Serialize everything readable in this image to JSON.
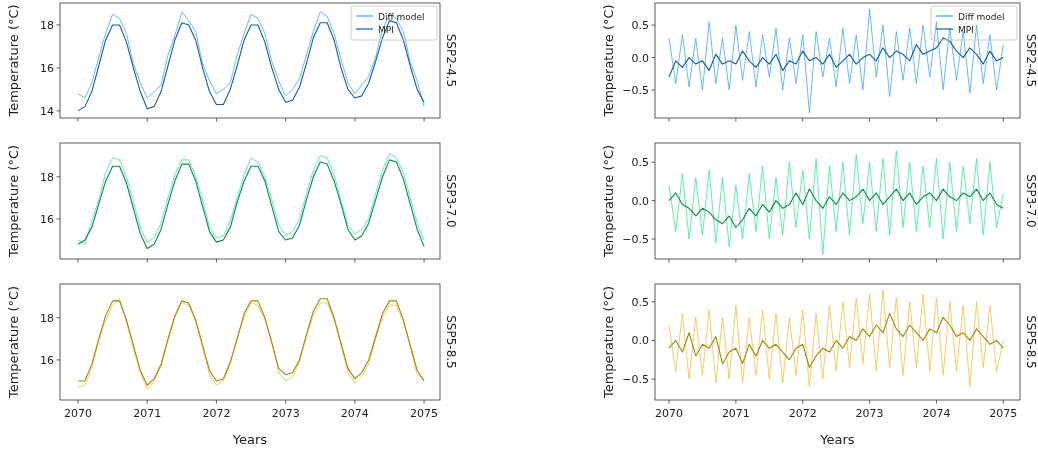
{
  "chart_data": [
    {
      "type": "line",
      "ylabel": "Temperature (°C)",
      "y2label": "SSP2-4.5",
      "xlim": [
        2069.74,
        2075.23
      ],
      "xticks": [
        2070,
        2071,
        2072,
        2073,
        2074,
        2075
      ],
      "ylim": [
        13.67,
        19.02
      ],
      "yticks": [
        14,
        16,
        18
      ],
      "tick_labels": "y",
      "legend": "top right",
      "grid": false,
      "x": [
        2070,
        2070.1,
        2070.2,
        2070.3,
        2070.4,
        2070.5,
        2070.6,
        2070.7,
        2070.8,
        2070.9,
        2071,
        2071.1,
        2071.2,
        2071.3,
        2071.4,
        2071.5,
        2071.6,
        2071.7,
        2071.8,
        2071.9,
        2072,
        2072.1,
        2072.2,
        2072.3,
        2072.4,
        2072.5,
        2072.6,
        2072.7,
        2072.8,
        2072.9,
        2073,
        2073.1,
        2073.2,
        2073.3,
        2073.4,
        2073.5,
        2073.6,
        2073.7,
        2073.8,
        2073.9,
        2074,
        2074.1,
        2074.2,
        2074.3,
        2074.4,
        2074.5,
        2074.6,
        2074.7,
        2074.8,
        2074.9,
        2075
      ],
      "series": [
        {
          "name": "Diff model",
          "color": "#3fa9f5",
          "values": [
            14.8,
            14.6,
            15.3,
            16.5,
            17.6,
            18.5,
            18.3,
            17.6,
            16.2,
            15.3,
            14.6,
            14.9,
            15.2,
            16.6,
            17.5,
            18.6,
            18.2,
            17.7,
            16.2,
            15.4,
            14.8,
            15.0,
            15.3,
            16.6,
            17.6,
            18.5,
            18.3,
            17.6,
            16.3,
            15.4,
            14.7,
            15.0,
            15.5,
            16.6,
            17.7,
            18.6,
            18.4,
            17.6,
            16.4,
            15.3,
            14.8,
            15.2,
            15.6,
            16.5,
            17.8,
            18.5,
            18.3,
            17.7,
            16.3,
            15.4,
            14.2
          ]
        },
        {
          "name": "MPI",
          "color": "#185f94",
          "values": [
            14.0,
            14.2,
            14.9,
            16.1,
            17.3,
            18.0,
            18.0,
            17.2,
            16.0,
            14.9,
            14.1,
            14.2,
            14.9,
            16.1,
            17.3,
            18.1,
            18.0,
            17.3,
            16.0,
            14.9,
            14.3,
            14.3,
            15.0,
            16.1,
            17.3,
            18.0,
            18.0,
            17.2,
            16.0,
            15.0,
            14.4,
            14.5,
            15.1,
            16.2,
            17.4,
            18.1,
            18.1,
            17.3,
            16.0,
            15.0,
            14.6,
            14.7,
            15.3,
            16.3,
            17.4,
            18.2,
            18.1,
            17.3,
            16.1,
            15.0,
            14.4
          ]
        }
      ]
    },
    {
      "type": "line",
      "ylabel": "Temperature (°C)",
      "y2label": "SSP2-4.5",
      "xlim": [
        2069.79,
        2075.25
      ],
      "xticks": [
        2070,
        2071,
        2072,
        2073,
        2074,
        2075
      ],
      "ylim": [
        -0.93,
        0.84
      ],
      "yticks": [
        {
          "value": -0.5,
          "label": "−0.5"
        },
        {
          "value": 0,
          "label": "0.0"
        },
        {
          "value": 0.5,
          "label": "0.5"
        }
      ],
      "tick_labels": "y",
      "legend": "top right",
      "grid": false,
      "x": [
        2070,
        2070.1,
        2070.2,
        2070.3,
        2070.4,
        2070.5,
        2070.6,
        2070.7,
        2070.8,
        2070.9,
        2071,
        2071.1,
        2071.2,
        2071.3,
        2071.4,
        2071.5,
        2071.6,
        2071.7,
        2071.8,
        2071.9,
        2072,
        2072.1,
        2072.2,
        2072.3,
        2072.4,
        2072.5,
        2072.6,
        2072.7,
        2072.8,
        2072.9,
        2073,
        2073.1,
        2073.2,
        2073.3,
        2073.4,
        2073.5,
        2073.6,
        2073.7,
        2073.8,
        2073.9,
        2074,
        2074.1,
        2074.2,
        2074.3,
        2074.4,
        2074.5,
        2074.6,
        2074.7,
        2074.8,
        2074.9,
        2075
      ],
      "series": [
        {
          "name": "Diff model",
          "color": "#3fa9f5",
          "values": [
            0.3,
            -0.4,
            0.35,
            -0.45,
            0.3,
            -0.5,
            0.55,
            -0.4,
            0.3,
            -0.5,
            0.5,
            -0.35,
            0.4,
            -0.45,
            0.35,
            -0.3,
            0.45,
            -0.5,
            0.3,
            -0.4,
            0.35,
            -0.85,
            0.4,
            -0.3,
            0.3,
            -0.45,
            0.45,
            -0.4,
            0.35,
            -0.5,
            0.75,
            -0.3,
            0.5,
            -0.6,
            0.4,
            -0.35,
            0.45,
            -0.4,
            0.5,
            -0.3,
            0.55,
            -0.5,
            0.45,
            -0.35,
            0.4,
            -0.55,
            0.5,
            -0.4,
            0.35,
            -0.5,
            0.2
          ]
        },
        {
          "name": "MPI",
          "color": "#185f94",
          "values": [
            -0.3,
            -0.05,
            -0.15,
            0.0,
            -0.1,
            -0.05,
            -0.2,
            0.05,
            -0.1,
            -0.05,
            -0.1,
            0.1,
            -0.05,
            -0.15,
            0.0,
            -0.1,
            0.05,
            -0.2,
            -0.05,
            -0.1,
            0.1,
            -0.05,
            0.0,
            -0.1,
            0.05,
            -0.15,
            -0.05,
            0.05,
            -0.1,
            0.0,
            0.05,
            -0.05,
            0.15,
            0.0,
            0.1,
            0.05,
            -0.05,
            0.2,
            0.05,
            0.1,
            0.15,
            0.3,
            0.25,
            0.1,
            0.0,
            0.15,
            0.05,
            -0.1,
            0.1,
            -0.05,
            0.0
          ]
        }
      ]
    },
    {
      "type": "line",
      "ylabel": "Temperature (°C)",
      "y2label": "SSP3-7.0",
      "xlim": [
        2069.74,
        2075.23
      ],
      "xticks": [
        2070,
        2071,
        2072,
        2073,
        2074,
        2075
      ],
      "ylim": [
        14.1,
        19.6
      ],
      "yticks": [
        16,
        18
      ],
      "tick_labels": "y",
      "grid": false,
      "x": [
        2070,
        2070.1,
        2070.2,
        2070.3,
        2070.4,
        2070.5,
        2070.6,
        2070.7,
        2070.8,
        2070.9,
        2071,
        2071.1,
        2071.2,
        2071.3,
        2071.4,
        2071.5,
        2071.6,
        2071.7,
        2071.8,
        2071.9,
        2072,
        2072.1,
        2072.2,
        2072.3,
        2072.4,
        2072.5,
        2072.6,
        2072.7,
        2072.8,
        2072.9,
        2073,
        2073.1,
        2073.2,
        2073.3,
        2073.4,
        2073.5,
        2073.6,
        2073.7,
        2073.8,
        2073.9,
        2074,
        2074.1,
        2074.2,
        2074.3,
        2074.4,
        2074.5,
        2074.6,
        2074.7,
        2074.8,
        2074.9,
        2075
      ],
      "series": [
        {
          "color": "#33ee8f",
          "values": [
            15.0,
            14.8,
            15.9,
            16.9,
            18.2,
            18.9,
            18.8,
            18.0,
            16.8,
            15.6,
            14.9,
            15.1,
            15.8,
            17.0,
            18.1,
            18.8,
            18.8,
            18.0,
            16.9,
            15.6,
            15.1,
            15.2,
            15.9,
            17.0,
            18.1,
            18.9,
            18.7,
            18.0,
            16.9,
            15.7,
            15.2,
            15.4,
            16.0,
            17.2,
            18.3,
            19.0,
            18.9,
            18.1,
            16.9,
            15.7,
            15.3,
            15.5,
            16.0,
            17.2,
            18.3,
            19.1,
            18.9,
            18.2,
            17.0,
            15.8,
            15.0
          ]
        },
        {
          "color": "#0d8a4c",
          "values": [
            14.8,
            15.0,
            15.6,
            16.7,
            17.8,
            18.5,
            18.5,
            17.7,
            16.5,
            15.3,
            14.6,
            14.8,
            15.5,
            16.7,
            17.8,
            18.6,
            18.6,
            17.8,
            16.6,
            15.4,
            14.9,
            15.0,
            15.6,
            16.8,
            17.8,
            18.5,
            18.5,
            17.8,
            16.6,
            15.4,
            15.0,
            15.1,
            15.7,
            16.9,
            18.0,
            18.7,
            18.6,
            17.8,
            16.7,
            15.5,
            15.0,
            15.2,
            15.8,
            16.9,
            18.0,
            18.8,
            18.7,
            17.9,
            16.7,
            15.5,
            14.7
          ]
        }
      ]
    },
    {
      "type": "line",
      "ylabel": "Temperature (°C)",
      "y2label": "SSP3-7.0",
      "xlim": [
        2069.79,
        2075.25
      ],
      "xticks": [
        2070,
        2071,
        2072,
        2073,
        2074,
        2075
      ],
      "ylim": [
        -0.76,
        0.75
      ],
      "yticks": [
        {
          "value": -0.5,
          "label": "−0.5"
        },
        {
          "value": 0,
          "label": "0.0"
        },
        {
          "value": 0.5,
          "label": "0.5"
        }
      ],
      "tick_labels": "y",
      "grid": false,
      "x": [
        2070,
        2070.1,
        2070.2,
        2070.3,
        2070.4,
        2070.5,
        2070.6,
        2070.7,
        2070.8,
        2070.9,
        2071,
        2071.1,
        2071.2,
        2071.3,
        2071.4,
        2071.5,
        2071.6,
        2071.7,
        2071.8,
        2071.9,
        2072,
        2072.1,
        2072.2,
        2072.3,
        2072.4,
        2072.5,
        2072.6,
        2072.7,
        2072.8,
        2072.9,
        2073,
        2073.1,
        2073.2,
        2073.3,
        2073.4,
        2073.5,
        2073.6,
        2073.7,
        2073.8,
        2073.9,
        2074,
        2074.1,
        2074.2,
        2074.3,
        2074.4,
        2074.5,
        2074.6,
        2074.7,
        2074.8,
        2074.9,
        2075
      ],
      "series": [
        {
          "color": "#33ee8f",
          "values": [
            0.2,
            -0.4,
            0.35,
            -0.5,
            0.3,
            -0.45,
            0.4,
            -0.55,
            0.3,
            -0.6,
            0.2,
            -0.5,
            0.35,
            -0.4,
            0.45,
            -0.5,
            0.3,
            -0.45,
            0.5,
            -0.35,
            0.4,
            -0.5,
            0.55,
            -0.7,
            0.45,
            -0.4,
            0.5,
            -0.45,
            0.6,
            -0.3,
            0.5,
            -0.4,
            0.55,
            -0.45,
            0.65,
            -0.35,
            0.5,
            -0.4,
            0.45,
            -0.35,
            0.55,
            -0.5,
            0.5,
            -0.4,
            0.45,
            -0.3,
            0.55,
            -0.45,
            0.5,
            -0.35,
            0.1
          ]
        },
        {
          "color": "#0d8a4c",
          "values": [
            0.0,
            0.1,
            -0.05,
            -0.1,
            -0.2,
            -0.1,
            -0.15,
            -0.25,
            -0.3,
            -0.2,
            -0.35,
            -0.25,
            -0.1,
            -0.2,
            -0.05,
            -0.15,
            0.0,
            -0.1,
            -0.05,
            0.1,
            -0.05,
            0.15,
            0.0,
            -0.1,
            0.05,
            -0.05,
            0.1,
            0.0,
            0.05,
            0.15,
            0.0,
            0.1,
            -0.05,
            0.05,
            0.15,
            0.0,
            0.1,
            -0.05,
            0.05,
            0.1,
            0.0,
            0.15,
            0.05,
            0.0,
            0.1,
            0.05,
            0.15,
            0.0,
            0.1,
            -0.05,
            -0.1
          ]
        }
      ]
    },
    {
      "type": "line",
      "xlabel": "Years",
      "ylabel": "Temperature (°C)",
      "y2label": "SSP5-8.5",
      "xlim": [
        2069.74,
        2075.23
      ],
      "xticks": [
        2070,
        2071,
        2072,
        2073,
        2074,
        2075
      ],
      "ylim": [
        14.1,
        19.6
      ],
      "yticks": [
        16,
        18
      ],
      "grid": false,
      "x": [
        2070,
        2070.1,
        2070.2,
        2070.3,
        2070.4,
        2070.5,
        2070.6,
        2070.7,
        2070.8,
        2070.9,
        2071,
        2071.1,
        2071.2,
        2071.3,
        2071.4,
        2071.5,
        2071.6,
        2071.7,
        2071.8,
        2071.9,
        2072,
        2072.1,
        2072.2,
        2072.3,
        2072.4,
        2072.5,
        2072.6,
        2072.7,
        2072.8,
        2072.9,
        2073,
        2073.1,
        2073.2,
        2073.3,
        2073.4,
        2073.5,
        2073.6,
        2073.7,
        2073.8,
        2073.9,
        2074,
        2074.1,
        2074.2,
        2074.3,
        2074.4,
        2074.5,
        2074.6,
        2074.7,
        2074.8,
        2074.9,
        2075
      ],
      "series": [
        {
          "color": "#f2c040",
          "values": [
            14.7,
            14.8,
            15.6,
            16.9,
            17.9,
            18.6,
            18.9,
            17.8,
            16.5,
            15.4,
            14.6,
            15.0,
            15.7,
            16.9,
            18.0,
            18.7,
            18.6,
            17.8,
            16.6,
            15.3,
            14.8,
            15.0,
            15.8,
            17.1,
            18.0,
            18.7,
            18.6,
            17.9,
            16.9,
            15.4,
            15.0,
            15.2,
            15.9,
            17.1,
            18.1,
            18.7,
            18.7,
            17.9,
            16.7,
            15.4,
            14.9,
            15.2,
            15.8,
            17.0,
            18.0,
            18.6,
            18.6,
            17.8,
            16.6,
            15.3,
            15.1
          ]
        },
        {
          "color": "#9a8a0c",
          "values": [
            15.0,
            15.0,
            15.8,
            17.0,
            18.1,
            18.8,
            18.8,
            17.9,
            16.7,
            15.5,
            14.8,
            15.1,
            15.8,
            17.0,
            18.1,
            18.8,
            18.7,
            17.9,
            16.7,
            15.5,
            15.0,
            15.1,
            15.9,
            17.0,
            18.2,
            18.8,
            18.8,
            18.0,
            16.8,
            15.6,
            15.3,
            15.4,
            16.0,
            17.2,
            18.3,
            18.9,
            18.9,
            18.0,
            16.8,
            15.6,
            15.1,
            15.4,
            16.0,
            17.1,
            18.2,
            18.8,
            18.8,
            17.9,
            16.7,
            15.5,
            15.0
          ]
        }
      ]
    },
    {
      "type": "line",
      "xlabel": "Years",
      "ylabel": "Temperature (°C)",
      "y2label": "SSP5-8.5",
      "xlim": [
        2069.79,
        2075.25
      ],
      "xticks": [
        2070,
        2071,
        2072,
        2073,
        2074,
        2075
      ],
      "ylim": [
        -0.77,
        0.73
      ],
      "yticks": [
        {
          "value": -0.5,
          "label": "−0.5"
        },
        {
          "value": 0,
          "label": "0.0"
        },
        {
          "value": 0.5,
          "label": "0.5"
        }
      ],
      "grid": false,
      "x": [
        2070,
        2070.1,
        2070.2,
        2070.3,
        2070.4,
        2070.5,
        2070.6,
        2070.7,
        2070.8,
        2070.9,
        2071,
        2071.1,
        2071.2,
        2071.3,
        2071.4,
        2071.5,
        2071.6,
        2071.7,
        2071.8,
        2071.9,
        2072,
        2072.1,
        2072.2,
        2072.3,
        2072.4,
        2072.5,
        2072.6,
        2072.7,
        2072.8,
        2072.9,
        2073,
        2073.1,
        2073.2,
        2073.3,
        2073.4,
        2073.5,
        2073.6,
        2073.7,
        2073.8,
        2073.9,
        2074,
        2074.1,
        2074.2,
        2074.3,
        2074.4,
        2074.5,
        2074.6,
        2074.7,
        2074.8,
        2074.9,
        2075
      ],
      "series": [
        {
          "color": "#f2c040",
          "values": [
            0.2,
            -0.4,
            0.35,
            -0.5,
            0.3,
            -0.45,
            0.4,
            -0.55,
            0.3,
            -0.5,
            0.45,
            -0.55,
            0.3,
            -0.45,
            0.4,
            -0.5,
            0.35,
            -0.55,
            0.3,
            -0.45,
            0.4,
            -0.6,
            0.35,
            -0.5,
            0.45,
            -0.4,
            0.5,
            -0.35,
            0.55,
            -0.3,
            0.6,
            -0.4,
            0.65,
            -0.35,
            0.55,
            -0.45,
            0.5,
            -0.35,
            0.6,
            -0.4,
            0.55,
            -0.45,
            0.5,
            -0.4,
            0.45,
            -0.6,
            0.5,
            -0.35,
            0.45,
            -0.4,
            0.0
          ]
        },
        {
          "color": "#9a8a0c",
          "values": [
            -0.1,
            0.0,
            -0.15,
            0.1,
            -0.2,
            -0.05,
            -0.1,
            0.05,
            -0.3,
            -0.15,
            -0.1,
            -0.3,
            -0.05,
            -0.2,
            0.0,
            -0.1,
            -0.05,
            -0.15,
            -0.25,
            -0.1,
            -0.05,
            -0.35,
            -0.2,
            -0.1,
            -0.15,
            0.0,
            -0.1,
            0.05,
            0.0,
            0.15,
            0.05,
            0.2,
            0.1,
            0.35,
            0.15,
            0.05,
            0.2,
            0.1,
            0.0,
            0.15,
            0.1,
            0.3,
            0.2,
            0.05,
            0.1,
            0.0,
            0.15,
            0.05,
            -0.05,
            0.0,
            -0.1
          ]
        }
      ]
    }
  ]
}
